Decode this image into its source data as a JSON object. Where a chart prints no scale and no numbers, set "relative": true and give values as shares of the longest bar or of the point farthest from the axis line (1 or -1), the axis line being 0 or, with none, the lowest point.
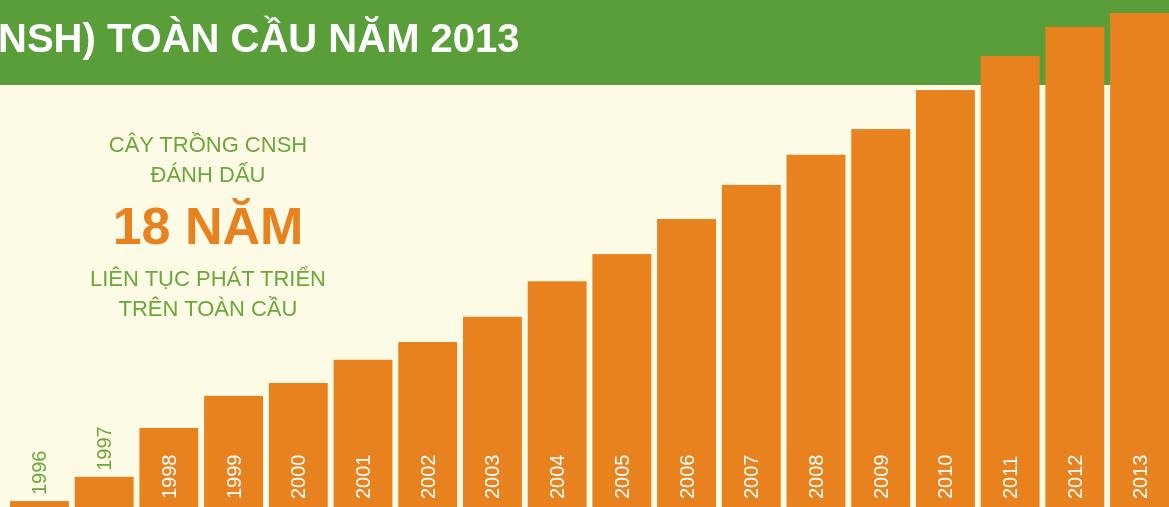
{
  "chart_data": {
    "type": "bar",
    "title": "NSH) TOÀN CẦU NĂM 2013",
    "categories": [
      "1996",
      "1997",
      "1998",
      "1999",
      "2000",
      "2001",
      "2002",
      "2003",
      "2004",
      "2005",
      "2006",
      "2007",
      "2008",
      "2009",
      "2010",
      "2011",
      "2012",
      "2013"
    ],
    "values": [
      0.012,
      0.061,
      0.16,
      0.225,
      0.251,
      0.298,
      0.334,
      0.385,
      0.457,
      0.512,
      0.583,
      0.652,
      0.713,
      0.765,
      0.844,
      0.913,
      0.972,
      1
    ],
    "color": "#e8821e",
    "relative": true,
    "annotations": [
      "CÂY TRỒNG CNSH",
      "ĐÁNH DẤU",
      "18 NĂM",
      "LIÊN TỤC PHÁT TRIỂN",
      "TRÊN TOÀN CẦU"
    ]
  }
}
